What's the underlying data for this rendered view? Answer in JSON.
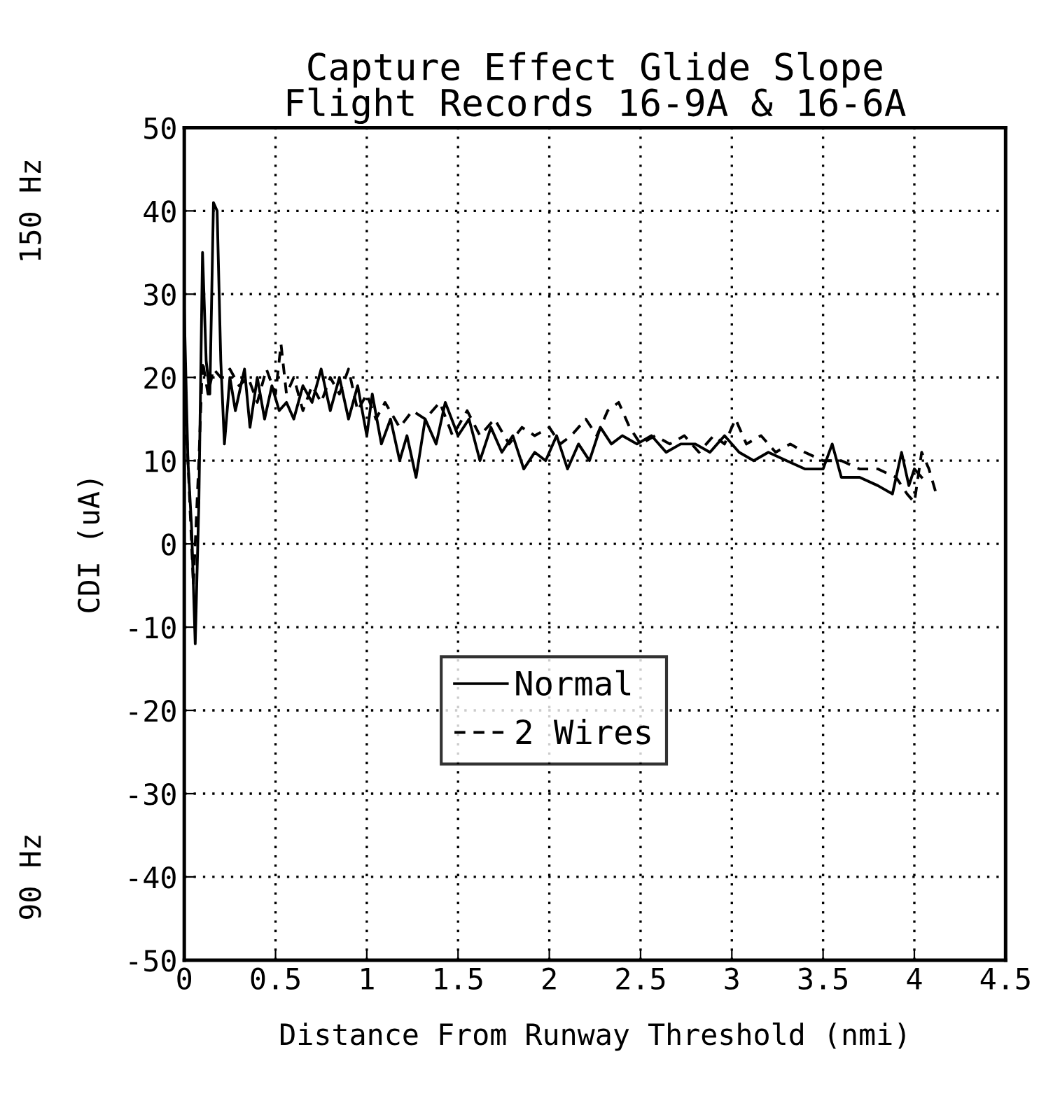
{
  "chart_data": {
    "type": "line",
    "title": "Capture Effect Glide Slope\nFlight Records 16-9A & 16-6A",
    "xlabel": "Distance From Runway Threshold (nmi)",
    "ylabel": "CDI (uA)",
    "annotations": [
      "150 Hz",
      "90 Hz"
    ],
    "series": [
      {
        "name": "Normal",
        "color": "#000000",
        "line_style": "solid",
        "x": [
          0.0,
          0.02,
          0.04,
          0.06,
          0.08,
          0.1,
          0.12,
          0.14,
          0.16,
          0.18,
          0.2,
          0.22,
          0.25,
          0.28,
          0.3,
          0.33,
          0.36,
          0.4,
          0.44,
          0.48,
          0.52,
          0.56,
          0.6,
          0.65,
          0.7,
          0.75,
          0.8,
          0.85,
          0.9,
          0.95,
          1.0,
          1.03,
          1.08,
          1.13,
          1.18,
          1.22,
          1.27,
          1.32,
          1.38,
          1.43,
          1.5,
          1.56,
          1.62,
          1.68,
          1.74,
          1.8,
          1.86,
          1.92,
          1.98,
          2.04,
          2.1,
          2.16,
          2.22,
          2.28,
          2.34,
          2.4,
          2.48,
          2.56,
          2.64,
          2.72,
          2.8,
          2.88,
          2.96,
          3.04,
          3.12,
          3.2,
          3.3,
          3.4,
          3.5,
          3.55,
          3.6,
          3.7,
          3.8,
          3.88,
          3.93,
          3.97,
          4.0,
          4.04
        ],
        "values": [
          28,
          10,
          2,
          -12,
          5,
          35,
          22,
          18,
          41,
          40,
          22,
          12,
          20,
          16,
          18,
          21,
          14,
          20,
          15,
          19,
          16,
          17,
          15,
          19,
          17,
          21,
          16,
          20,
          15,
          19,
          13,
          18,
          12,
          15,
          10,
          13,
          8,
          15,
          12,
          17,
          13,
          15,
          10,
          14,
          11,
          13,
          9,
          11,
          10,
          13,
          9,
          12,
          10,
          14,
          12,
          13,
          12,
          13,
          11,
          12,
          12,
          11,
          13,
          11,
          10,
          11,
          10,
          9,
          9,
          12,
          8,
          8,
          7,
          6,
          11,
          7,
          9,
          8
        ]
      },
      {
        "name": "2 Wires",
        "color": "#000000",
        "line_style": "dashed",
        "x": [
          0.0,
          0.03,
          0.05,
          0.08,
          0.1,
          0.13,
          0.16,
          0.2,
          0.25,
          0.3,
          0.35,
          0.4,
          0.45,
          0.5,
          0.53,
          0.56,
          0.6,
          0.65,
          0.7,
          0.75,
          0.8,
          0.85,
          0.9,
          0.95,
          1.0,
          1.05,
          1.1,
          1.18,
          1.25,
          1.32,
          1.4,
          1.47,
          1.55,
          1.62,
          1.7,
          1.78,
          1.85,
          1.92,
          2.0,
          2.06,
          2.12,
          2.2,
          2.26,
          2.32,
          2.38,
          2.44,
          2.5,
          2.58,
          2.66,
          2.74,
          2.82,
          2.9,
          2.96,
          3.02,
          3.08,
          3.16,
          3.24,
          3.32,
          3.4,
          3.5,
          3.6,
          3.7,
          3.8,
          3.9,
          3.96,
          4.0,
          4.04,
          4.08,
          4.12
        ],
        "values": [
          20,
          5,
          -5,
          10,
          22,
          18,
          21,
          20,
          21,
          19,
          20,
          17,
          21,
          18,
          24,
          18,
          20,
          16,
          19,
          17,
          20,
          18,
          21,
          16,
          18,
          15,
          17,
          14,
          16,
          15,
          17,
          13,
          16,
          13,
          15,
          12,
          14,
          13,
          14,
          12,
          13,
          15,
          13,
          16,
          17,
          14,
          12,
          13,
          12,
          13,
          11,
          13,
          12,
          15,
          12,
          13,
          11,
          12,
          11,
          10,
          10,
          9,
          9,
          8,
          6,
          5,
          11,
          9,
          6
        ]
      }
    ],
    "xlim": [
      0,
      4.5
    ],
    "xticks": [
      0,
      0.5,
      1,
      1.5,
      2,
      2.5,
      3,
      3.5,
      4,
      4.5
    ],
    "ylim": [
      -50,
      50
    ],
    "yticks": [
      -50,
      -40,
      -30,
      -20,
      -10,
      0,
      10,
      20,
      30,
      40,
      50
    ],
    "grid": true,
    "legend": "center"
  }
}
